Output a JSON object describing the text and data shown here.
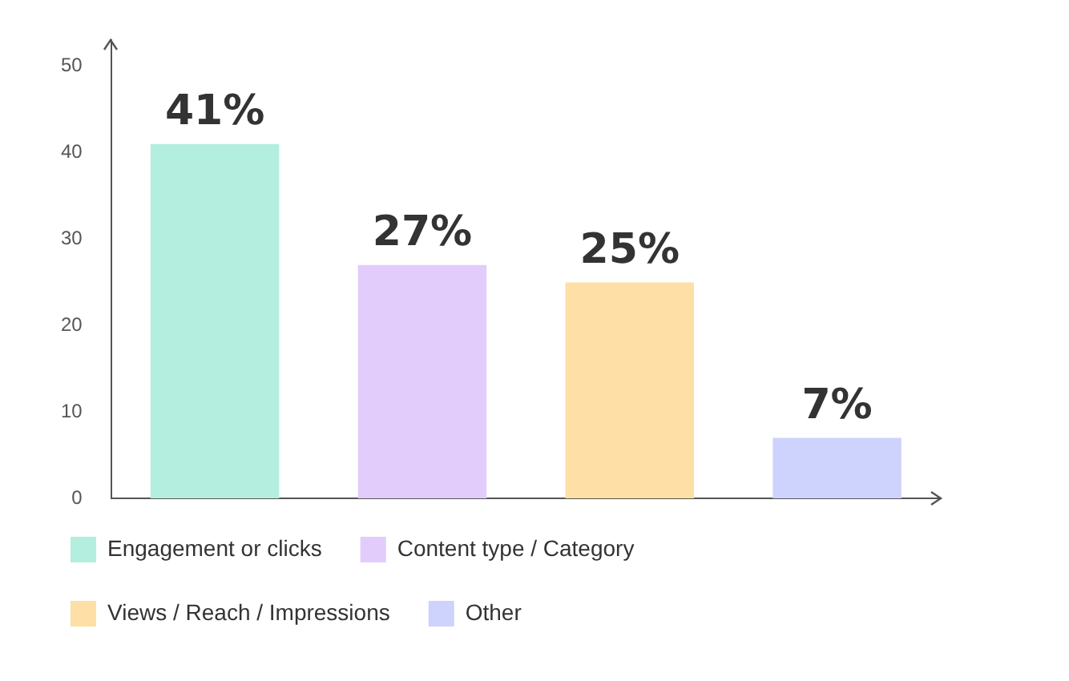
{
  "chart_data": {
    "type": "bar",
    "categories": [
      null,
      null,
      null,
      null
    ],
    "series": [
      {
        "name": "Engagement or clicks",
        "color": "#b3eedf",
        "values": [
          41,
          null,
          null,
          null
        ],
        "value_labels": [
          "41%",
          null,
          null,
          null
        ]
      },
      {
        "name": "Content type / Category",
        "color": "#e2ccfc",
        "values": [
          null,
          27,
          null,
          null
        ],
        "value_labels": [
          null,
          "27%",
          null,
          null
        ]
      },
      {
        "name": "Views / Reach / Impressions",
        "color": "#fedfa6",
        "values": [
          null,
          null,
          25,
          null
        ],
        "value_labels": [
          null,
          null,
          "25%",
          null
        ]
      },
      {
        "name": "Other",
        "color": "#cdd3fd",
        "values": [
          null,
          null,
          null,
          7
        ],
        "value_labels": [
          null,
          null,
          null,
          "7%"
        ]
      }
    ],
    "ylim": [
      0,
      53
    ],
    "yticks": [
      0,
      10,
      20,
      30,
      40,
      50
    ],
    "tick_labels": "y",
    "grid": false,
    "legend": "bottom"
  }
}
